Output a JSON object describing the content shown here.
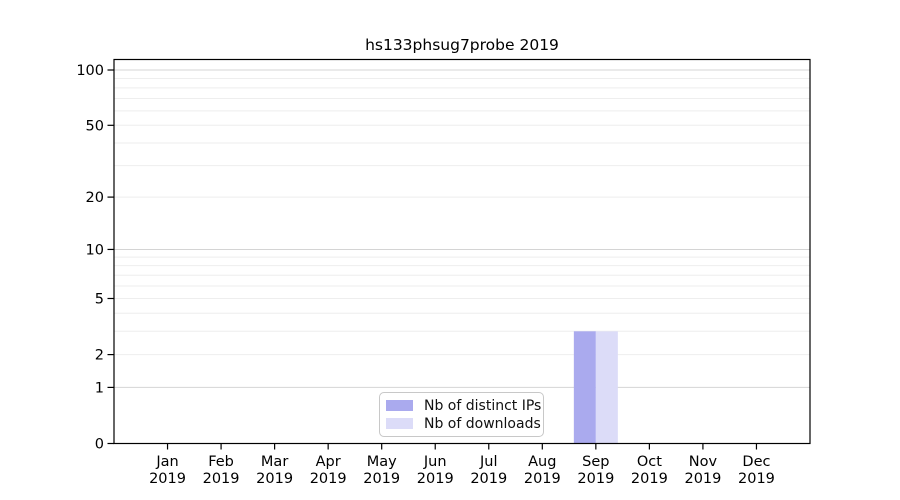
{
  "chart_data": {
    "type": "bar",
    "title": "hs133phsug7probe 2019",
    "categories": [
      "Jan",
      "Feb",
      "Mar",
      "Apr",
      "May",
      "Jun",
      "Jul",
      "Aug",
      "Sep",
      "Oct",
      "Nov",
      "Dec"
    ],
    "x_axis": {
      "year": "2019",
      "tick_label_format": "month over year, two lines"
    },
    "y_axis": {
      "scale": "log10(1+x)",
      "min": 0,
      "max": 114,
      "ticks": [
        0,
        1,
        2,
        5,
        10,
        20,
        50,
        100
      ]
    },
    "grid": {
      "minor_values": [
        2,
        3,
        4,
        5,
        6,
        7,
        8,
        9,
        20,
        30,
        40,
        50,
        60,
        70,
        80,
        90
      ],
      "major_values": [
        1,
        10,
        100
      ]
    },
    "series": [
      {
        "name": "Nb of distinct IPs",
        "color": "#aaaaee",
        "values": [
          0,
          0,
          0,
          0,
          0,
          0,
          0,
          0,
          3,
          0,
          0,
          0
        ]
      },
      {
        "name": "Nb of downloads",
        "color": "#dcdcf8",
        "values": [
          0,
          0,
          0,
          0,
          0,
          0,
          0,
          0,
          3,
          0,
          0,
          0
        ]
      }
    ],
    "legend": {
      "position": "bottom-center",
      "entries": [
        "Nb of distinct IPs",
        "Nb of downloads"
      ]
    },
    "colors": {
      "axis": "#000000",
      "text": "#000000",
      "grid_minor": "#eeeeee",
      "grid_major": "#d4d4d4",
      "background": "#ffffff"
    }
  }
}
